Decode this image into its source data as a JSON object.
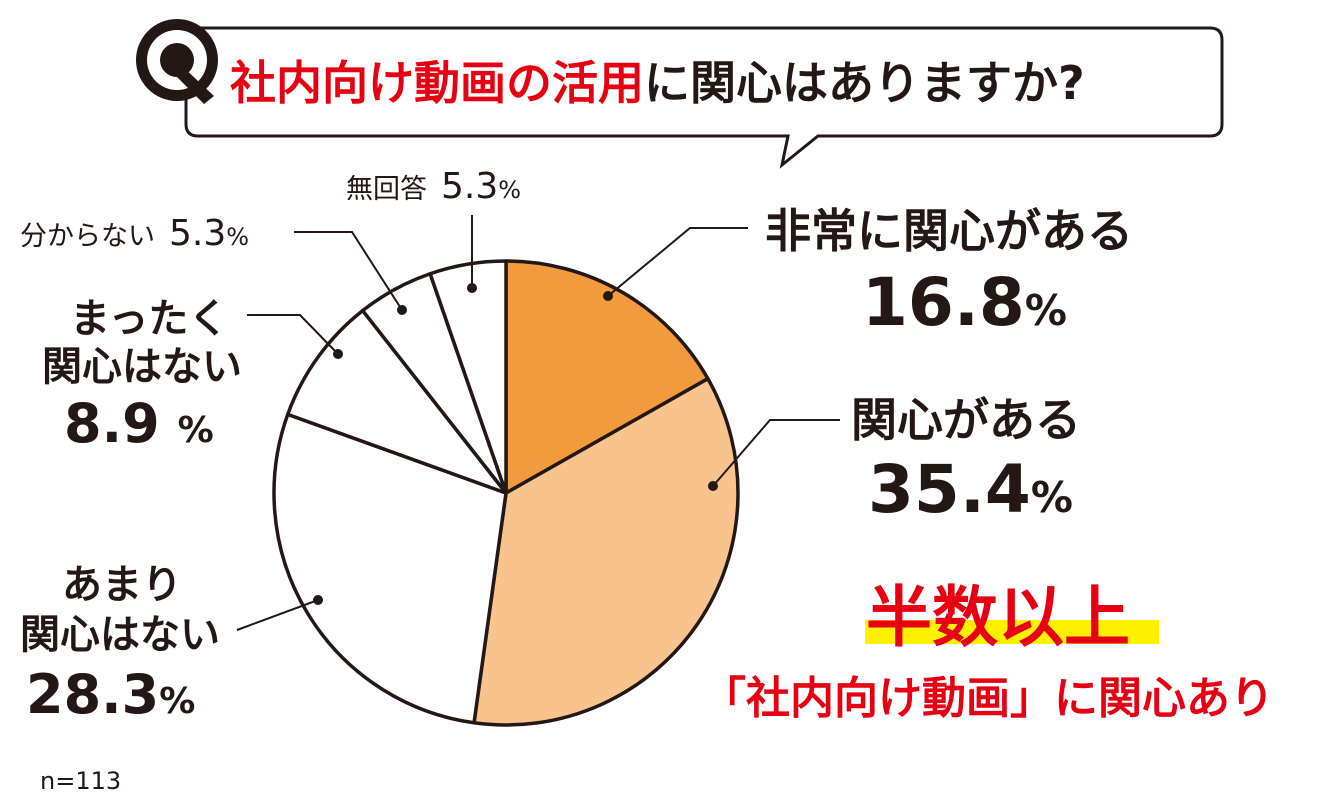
{
  "question": {
    "mark": "Q",
    "title_highlight": "社内向け動画の活用",
    "title_rest": "に関心はありますか?"
  },
  "chart_data": {
    "type": "pie",
    "start_angle_deg": 0,
    "direction": "clockwise",
    "slices": [
      {
        "label": "非常に関心がある",
        "value": 16.8,
        "color": "#F29B3C"
      },
      {
        "label": "関心がある",
        "value": 35.4,
        "color": "#F8C38C"
      },
      {
        "label": "あまり関心はない",
        "value": 28.3,
        "color": "#FFFFFF"
      },
      {
        "label": "まったく関心はない",
        "value": 8.9,
        "color": "#FFFFFF"
      },
      {
        "label": "分からない",
        "value": 5.3,
        "color": "#FFFFFF"
      },
      {
        "label": "無回答",
        "value": 5.3,
        "color": "#FFFFFF"
      }
    ]
  },
  "labels": {
    "very_interested": {
      "text": "非常に関心がある",
      "value": "16.8",
      "unit": "%"
    },
    "interested": {
      "text": "関心がある",
      "value": "35.4",
      "unit": "%"
    },
    "not_very": {
      "line1": "あまり",
      "line2": "関心はない",
      "value": "28.3",
      "unit": "%"
    },
    "not_at_all": {
      "line1": "まったく",
      "line2": "関心はない",
      "value": "8.9",
      "unit": "%"
    },
    "dont_know": {
      "text": "分からない",
      "value": "5.3",
      "unit": "%"
    },
    "no_answer": {
      "text": "無回答",
      "value": "5.3",
      "unit": "%"
    }
  },
  "callout": {
    "headline": "半数以上",
    "subline": "「社内向け動画」に関心あり"
  },
  "footnote": "n=113",
  "colors": {
    "accent_red": "#E60012",
    "ink": "#231815",
    "highlight_yellow": "#FFF100"
  }
}
